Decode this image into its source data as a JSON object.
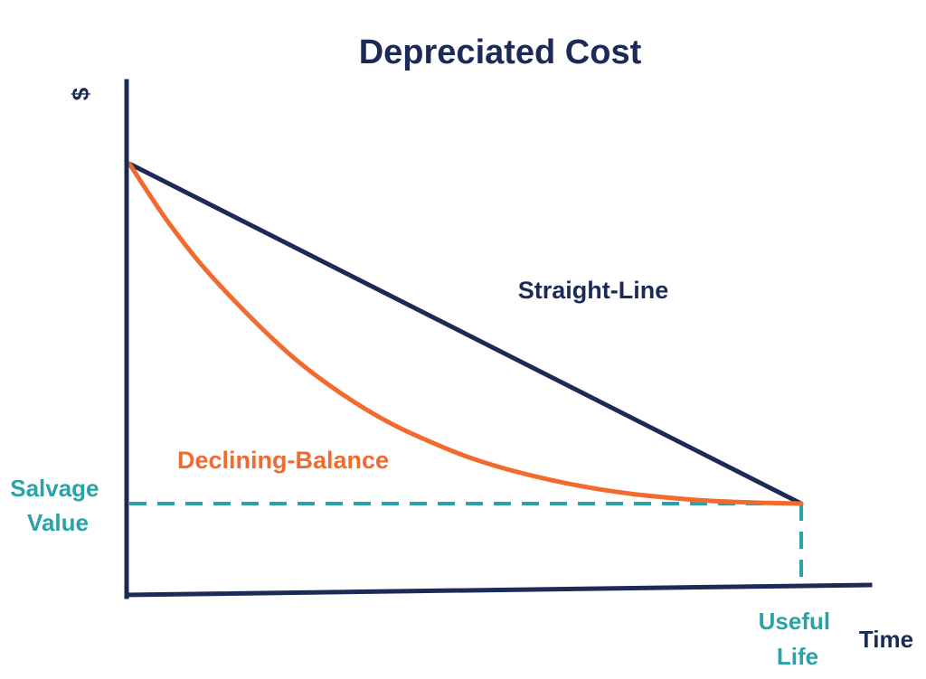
{
  "chart_data": {
    "type": "line",
    "title": "Depreciated Cost",
    "xlabel": "Time",
    "ylabel": "$",
    "x_range": [
      0,
      1
    ],
    "y_range": [
      0,
      1
    ],
    "grid": false,
    "series": [
      {
        "name": "Straight-Line",
        "color": "#1b2a57",
        "points": [
          [
            0,
            1
          ],
          [
            1,
            0
          ]
        ]
      },
      {
        "name": "Declining-Balance",
        "color": "#f26a2e",
        "points": [
          [
            0,
            1
          ],
          [
            0.05,
            0.85
          ],
          [
            0.1,
            0.72
          ],
          [
            0.15,
            0.61
          ],
          [
            0.2,
            0.51
          ],
          [
            0.25,
            0.42
          ],
          [
            0.3,
            0.345
          ],
          [
            0.35,
            0.28
          ],
          [
            0.4,
            0.225
          ],
          [
            0.45,
            0.18
          ],
          [
            0.5,
            0.14
          ],
          [
            0.55,
            0.108
          ],
          [
            0.6,
            0.082
          ],
          [
            0.65,
            0.06
          ],
          [
            0.7,
            0.042
          ],
          [
            0.75,
            0.028
          ],
          [
            0.8,
            0.018
          ],
          [
            0.85,
            0.01
          ],
          [
            0.9,
            0.005
          ],
          [
            0.95,
            0.002
          ],
          [
            1,
            0
          ]
        ]
      }
    ],
    "annotations": {
      "salvage_value": {
        "lines": [
          "Salvage",
          "Value"
        ],
        "color": "#2aa3a8"
      },
      "useful_life": {
        "lines": [
          "Useful",
          "Life"
        ],
        "color": "#2aa3a8"
      }
    },
    "colors": {
      "title": "#1b2a57",
      "axis": "#1b2a57",
      "reference": "#2aa3a8"
    }
  }
}
